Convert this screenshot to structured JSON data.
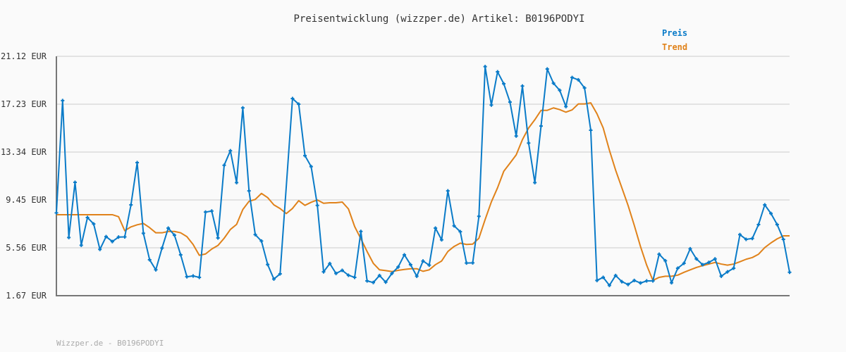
{
  "chart_data": {
    "type": "line",
    "title": "Preisentwicklung (wizzper.de) Artikel: B0196PODYI",
    "xlabel": "",
    "ylabel": "",
    "ylim": [
      1.67,
      21.12
    ],
    "y_ticks": [
      "21.12 EUR",
      "17.23 EUR",
      "13.34 EUR",
      "9.45 EUR",
      "5.56 EUR",
      "1.67 EUR"
    ],
    "y_tick_values": [
      21.12,
      17.23,
      13.34,
      9.45,
      5.56,
      1.67
    ],
    "grid": true,
    "legend_position": "top-right",
    "series": [
      {
        "name": "Preis",
        "color": "#0a7bc8",
        "markers": true,
        "values": [
          8.4,
          17.52,
          6.4,
          10.88,
          5.77,
          8.02,
          7.5,
          5.43,
          6.47,
          6.07,
          6.43,
          6.45,
          9.05,
          12.48,
          6.74,
          4.59,
          3.77,
          5.54,
          7.16,
          6.59,
          4.99,
          3.21,
          3.27,
          3.16,
          8.46,
          8.55,
          6.36,
          12.27,
          13.45,
          10.86,
          16.93,
          10.19,
          6.63,
          6.11,
          4.2,
          3.02,
          3.44,
          null,
          17.69,
          17.23,
          13.05,
          12.16,
          9.01,
          3.61,
          4.28,
          3.48,
          3.73,
          3.33,
          3.16,
          6.89,
          2.87,
          2.74,
          3.31,
          2.77,
          3.48,
          4.0,
          4.99,
          4.19,
          3.25,
          4.49,
          4.15,
          7.16,
          6.21,
          10.19,
          7.35,
          6.87,
          4.32,
          4.34,
          8.12,
          20.28,
          17.16,
          19.86,
          18.89,
          17.4,
          14.64,
          18.7,
          14.07,
          10.86,
          15.46,
          20.09,
          18.93,
          18.36,
          17.04,
          19.4,
          19.21,
          18.55,
          15.11,
          2.91,
          3.16,
          2.51,
          3.31,
          2.81,
          2.58,
          2.91,
          2.7,
          2.87,
          2.87,
          5.04,
          4.51,
          2.72,
          3.9,
          4.3,
          5.48,
          4.66,
          4.19,
          4.37,
          4.66,
          3.25,
          3.61,
          3.9,
          6.63,
          6.25,
          6.32,
          7.45,
          9.05,
          8.35,
          7.45,
          6.25,
          3.57
        ]
      },
      {
        "name": "Trend",
        "color": "#e0821a",
        "markers": false,
        "values": [
          8.25,
          8.25,
          8.25,
          8.25,
          8.25,
          8.25,
          8.25,
          8.25,
          8.25,
          8.25,
          8.09,
          6.95,
          7.26,
          7.43,
          7.54,
          7.2,
          6.78,
          6.78,
          6.89,
          6.89,
          6.78,
          6.47,
          5.83,
          4.95,
          5.06,
          5.46,
          5.75,
          6.34,
          7.05,
          7.46,
          8.67,
          9.34,
          9.49,
          9.98,
          9.64,
          9.05,
          8.75,
          8.34,
          8.76,
          9.39,
          9.01,
          9.26,
          9.45,
          9.18,
          9.22,
          9.22,
          9.28,
          8.72,
          7.29,
          6.29,
          5.26,
          4.3,
          3.77,
          3.71,
          3.63,
          3.73,
          3.8,
          3.86,
          3.86,
          3.65,
          3.77,
          4.19,
          4.49,
          5.26,
          5.67,
          5.94,
          5.83,
          5.86,
          6.34,
          7.86,
          9.29,
          10.44,
          11.78,
          12.44,
          13.11,
          14.35,
          15.3,
          15.97,
          16.73,
          16.73,
          16.93,
          16.79,
          16.58,
          16.77,
          17.25,
          17.25,
          17.34,
          16.45,
          15.3,
          13.49,
          11.87,
          10.44,
          9.01,
          7.39,
          5.67,
          4.15,
          2.91,
          3.16,
          3.25,
          3.25,
          3.34,
          3.57,
          3.77,
          3.96,
          4.11,
          4.24,
          4.37,
          4.24,
          4.15,
          4.24,
          4.43,
          4.63,
          4.77,
          5.04,
          5.58,
          5.96,
          6.29,
          6.53,
          6.53
        ]
      }
    ]
  },
  "footer": "Wizzper.de - B0196PODYI"
}
